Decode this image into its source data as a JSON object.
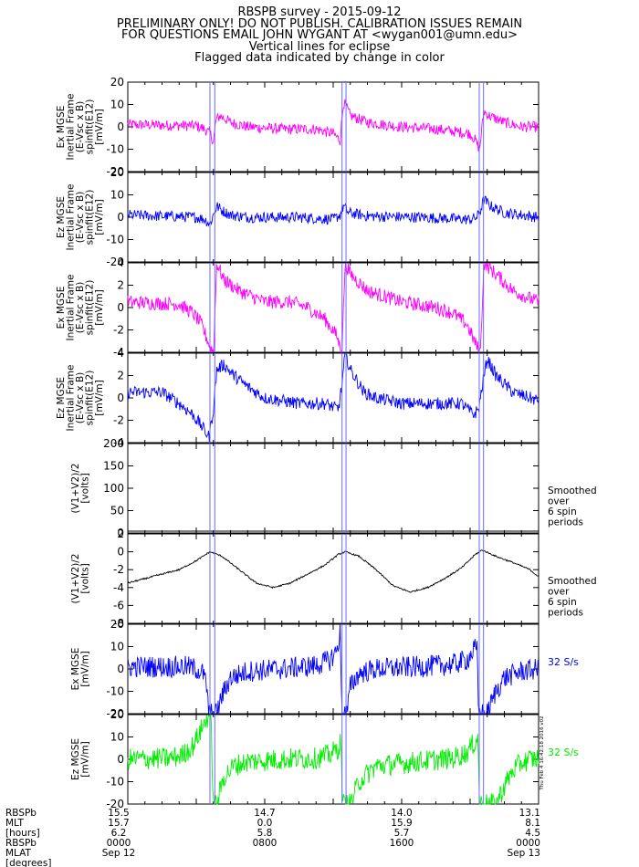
{
  "header": {
    "title": "RBSPB survey - 2015-09-12",
    "line2": "PRELIMINARY ONLY! DO NOT PUBLISH. CALIBRATION ISSUES REMAIN",
    "line3": "FOR QUESTIONS EMAIL JOHN WYGANT AT <wygan001@umn.edu>",
    "line4": "Vertical lines for eclipse",
    "line5": "Flagged data indicated by change in color"
  },
  "colors": {
    "magenta": "#ff00ff",
    "blue": "#0000ff",
    "black": "#000000",
    "green": "#00ee00",
    "eclipse_lines": "#6a6aff"
  },
  "chart_data": {
    "type": "line",
    "x_domain": [
      "Sep 12 00:00",
      "Sep 13 00:00"
    ],
    "eclipse_times": [
      [
        "04:48",
        "05:05"
      ],
      [
        "12:31",
        "12:45"
      ],
      [
        "20:32",
        "20:47"
      ]
    ],
    "panels": [
      {
        "ylabel": [
          "Ex MGSE",
          "Inertial Frame",
          "(E-Vsc x B)",
          "spinfit(E12)",
          "[mV/m]"
        ],
        "ylim": [
          -20,
          20
        ],
        "ticks": [
          20,
          10,
          0,
          -10,
          -20
        ],
        "color": "magenta",
        "noise": 0.35,
        "side_label": [],
        "series": [
          {
            "t": [
              0.0,
              4.0,
              4.5,
              4.85,
              5.0,
              5.15,
              5.4,
              6.0,
              7.0,
              9.0,
              11.0,
              12.0,
              12.4,
              12.6,
              12.75,
              13.0,
              14.0,
              16.0,
              18.0,
              20.0,
              20.3,
              20.55,
              20.8,
              21.1,
              22.0,
              23.0,
              24.0
            ],
            "v": [
              1.0,
              0.5,
              -1.0,
              -3.5,
              -7.0,
              3.0,
              5.0,
              2.0,
              0.0,
              -1.0,
              -1.0,
              -3.0,
              -6.0,
              11.0,
              9.0,
              5.0,
              2.0,
              0.0,
              -1.0,
              -3.0,
              -6.0,
              -10.0,
              7.0,
              5.0,
              2.0,
              0.0,
              0.0
            ]
          }
        ]
      },
      {
        "ylabel": [
          "Ez MGSE",
          "Inertial Frame",
          "(E-Vsc x B)",
          "spinfit(E12)",
          "[mV/m]"
        ],
        "ylim": [
          -20,
          20
        ],
        "ticks": [
          20,
          10,
          0,
          -10,
          -20
        ],
        "color": "blue",
        "noise": 0.35,
        "side_label": [],
        "series": [
          {
            "t": [
              0.0,
              4.0,
              4.5,
              4.8,
              5.0,
              5.2,
              5.5,
              6.0,
              7.0,
              10.0,
              12.0,
              12.4,
              12.6,
              12.9,
              14.0,
              17.0,
              20.0,
              20.4,
              20.6,
              20.8,
              21.2,
              22.0,
              24.0
            ],
            "v": [
              1.0,
              0.0,
              -1.0,
              -3.0,
              1.0,
              5.0,
              3.0,
              1.0,
              0.0,
              0.0,
              -1.0,
              1.0,
              5.0,
              2.0,
              0.5,
              0.0,
              -1.0,
              0.0,
              3.0,
              8.0,
              5.0,
              2.0,
              0.0
            ]
          }
        ]
      },
      {
        "ylabel": [
          "Ex MGSE",
          "Inertial Frame",
          "(E-Vsc x B)",
          "spinfit(E12)",
          "[mV/m]"
        ],
        "ylim": [
          -4,
          4
        ],
        "ticks": [
          4,
          2,
          0,
          -2,
          -4
        ],
        "color": "magenta",
        "noise": 0.45,
        "side_label": [],
        "series": [
          {
            "t": [
              0.0,
              3.0,
              3.8,
              4.3,
              4.8,
              5.0,
              5.2,
              5.6,
              6.5,
              8.0,
              9.5,
              10.5,
              11.5,
              12.2,
              12.5,
              12.7,
              13.0,
              14.0,
              16.0,
              18.0,
              19.0,
              19.8,
              20.4,
              20.6,
              20.8,
              21.5,
              22.5,
              23.5,
              24.0
            ],
            "v": [
              0.5,
              0.3,
              -0.5,
              -1.5,
              -3.5,
              -4.0,
              4.0,
              2.5,
              1.5,
              0.5,
              0.5,
              0.0,
              -1.0,
              -2.5,
              -4.0,
              4.0,
              3.0,
              1.5,
              0.5,
              0.0,
              -0.5,
              -1.5,
              -3.5,
              -4.0,
              4.0,
              3.0,
              1.5,
              0.8,
              0.5
            ]
          }
        ]
      },
      {
        "ylabel": [
          "Ez MGSE",
          "Inertial Frame",
          "(E-Vsc x B)",
          "spinfit(E12)",
          "[mV/m]"
        ],
        "ylim": [
          -4,
          4
        ],
        "ticks": [
          4,
          2,
          0,
          -2,
          -4
        ],
        "color": "blue",
        "noise": 0.4,
        "side_label": [],
        "series": [
          {
            "t": [
              0.0,
              2.0,
              3.0,
              3.8,
              4.3,
              4.75,
              5.0,
              5.2,
              5.6,
              6.2,
              7.0,
              8.0,
              10.0,
              11.5,
              12.3,
              12.5,
              12.7,
              13.0,
              13.8,
              14.5,
              16.0,
              18.0,
              19.5,
              20.2,
              20.5,
              20.7,
              21.0,
              21.5,
              22.5,
              23.5,
              24.0
            ],
            "v": [
              0.5,
              0.5,
              -0.5,
              -1.5,
              -2.5,
              -3.5,
              -1.0,
              2.5,
              3.0,
              2.0,
              1.0,
              0.0,
              -0.5,
              -0.5,
              -1.0,
              1.0,
              4.0,
              2.5,
              0.5,
              0.0,
              -0.5,
              -0.5,
              -0.5,
              -1.5,
              -1.0,
              1.0,
              3.5,
              2.0,
              0.5,
              0.0,
              -0.3
            ]
          }
        ]
      },
      {
        "ylabel": [
          "(V1+V2)/2",
          "[volts]"
        ],
        "ylim": [
          0,
          200
        ],
        "ticks": [
          200,
          150,
          100,
          50,
          0
        ],
        "color": "black",
        "noise": 0.0,
        "side_label": [
          "Smoothed",
          "over",
          "6 spin",
          "periods"
        ],
        "series": [
          {
            "t": [
              0.0,
              24.0
            ],
            "v": [
              4.0,
              4.0
            ]
          }
        ]
      },
      {
        "ylabel": [
          "(V1+V2)/2",
          "[volts]"
        ],
        "ylim": [
          -8,
          2
        ],
        "ticks": [
          2,
          0,
          -2,
          -4,
          -6,
          -8
        ],
        "color": "black",
        "noise": 0.05,
        "side_label": [
          "Smoothed",
          "over",
          "6 spin",
          "periods"
        ],
        "series": [
          {
            "t": [
              0.0,
              1.0,
              2.0,
              3.0,
              4.0,
              4.8,
              5.5,
              6.5,
              7.5,
              8.5,
              9.5,
              10.5,
              11.5,
              12.3,
              12.7,
              13.5,
              14.5,
              15.5,
              16.5,
              17.5,
              18.5,
              19.5,
              20.3,
              20.7,
              21.5,
              22.5,
              23.5,
              24.0
            ],
            "v": [
              -3.5,
              -3.0,
              -2.5,
              -2.0,
              -1.0,
              0.0,
              -0.5,
              -2.0,
              -3.5,
              -4.0,
              -3.5,
              -2.5,
              -1.5,
              -0.3,
              0.0,
              -0.5,
              -2.0,
              -3.8,
              -4.5,
              -4.0,
              -3.0,
              -1.8,
              -0.3,
              0.2,
              -0.5,
              -1.2,
              -2.0,
              -2.8
            ]
          }
        ]
      },
      {
        "ylabel": [
          "Ex MGSE",
          "[mV/m]"
        ],
        "ylim": [
          -20,
          20
        ],
        "ticks": [
          20,
          10,
          0,
          -10,
          -20
        ],
        "color": "blue",
        "noise": 0.7,
        "side_label": [
          "32 S/s"
        ],
        "series": [
          {
            "t": [
              0.0,
              3.0,
              3.5,
              4.0,
              4.4,
              4.6,
              4.75,
              4.85,
              5.0,
              5.2,
              5.5,
              6.0,
              7.0,
              9.0,
              11.0,
              11.8,
              12.2,
              12.3,
              12.4,
              12.5,
              12.55,
              12.65,
              12.8,
              13.0,
              13.5,
              14.5,
              17.0,
              19.0,
              19.8,
              20.1,
              20.25,
              20.4,
              20.5,
              20.6,
              20.8,
              21.0,
              21.5,
              22.0,
              23.0,
              24.0
            ],
            "v": [
              1.0,
              1.0,
              1.0,
              0.0,
              -2.0,
              -8.0,
              -20.0,
              -20.0,
              -20.0,
              -20.0,
              -12.0,
              -4.0,
              -1.0,
              0.0,
              1.5,
              4.0,
              8.0,
              12.0,
              16.0,
              -18.0,
              -20.0,
              -20.0,
              -20.0,
              -8.0,
              -2.0,
              0.0,
              1.0,
              2.0,
              4.0,
              7.0,
              9.0,
              8.0,
              -20.0,
              -20.0,
              -20.0,
              -20.0,
              -10.0,
              -4.0,
              -1.0,
              0.0
            ]
          }
        ]
      },
      {
        "ylabel": [
          "Ez MGSE",
          "[mV/m]"
        ],
        "ylim": [
          -20,
          20
        ],
        "ticks": [
          20,
          10,
          0,
          -10,
          -20
        ],
        "color": "green",
        "noise": 0.7,
        "side_label": [
          "32 S/s"
        ],
        "series": [
          {
            "t": [
              0.0,
              2.5,
              3.2,
              3.8,
              4.2,
              4.6,
              4.75,
              4.85,
              5.0,
              5.2,
              5.6,
              6.2,
              7.0,
              9.0,
              11.0,
              11.8,
              12.3,
              12.45,
              12.55,
              12.8,
              13.0,
              13.5,
              14.5,
              17.0,
              19.0,
              19.8,
              20.3,
              20.45,
              20.55,
              20.8,
              21.0,
              21.5,
              22.0,
              22.5,
              23.0,
              23.5,
              24.0
            ],
            "v": [
              0.0,
              0.5,
              2.0,
              6.0,
              12.0,
              18.0,
              20.0,
              20.0,
              -20.0,
              -20.0,
              -8.0,
              -3.0,
              -1.0,
              0.0,
              0.5,
              2.0,
              5.0,
              8.0,
              -20.0,
              -20.0,
              -20.0,
              -10.0,
              -3.0,
              -1.0,
              0.5,
              3.0,
              8.0,
              10.0,
              -20.0,
              -20.0,
              -20.0,
              -20.0,
              -12.0,
              -5.0,
              -1.5,
              0.0,
              0.5
            ]
          }
        ]
      }
    ],
    "x_axis": {
      "row_labels": [
        "RBSPb",
        "MLT",
        "[hours]",
        "RBSPb",
        "MLAT",
        "[degrees]"
      ],
      "positions": [
        "00:00",
        "08:00",
        "16:00",
        "24:00"
      ],
      "columns": [
        [
          "15.5",
          "15.7",
          "6.2",
          "0000",
          "Sep 12"
        ],
        [
          "14.7",
          "0.0",
          "5.8",
          "0800",
          ""
        ],
        [
          "14.0",
          "15.9",
          "5.7",
          "1600",
          ""
        ],
        [
          "13.1",
          "8.1",
          "4.5",
          "0000",
          "Sep 13"
        ]
      ]
    },
    "watermark": "Thu Feb  4 16:42:18 2016 v02"
  }
}
